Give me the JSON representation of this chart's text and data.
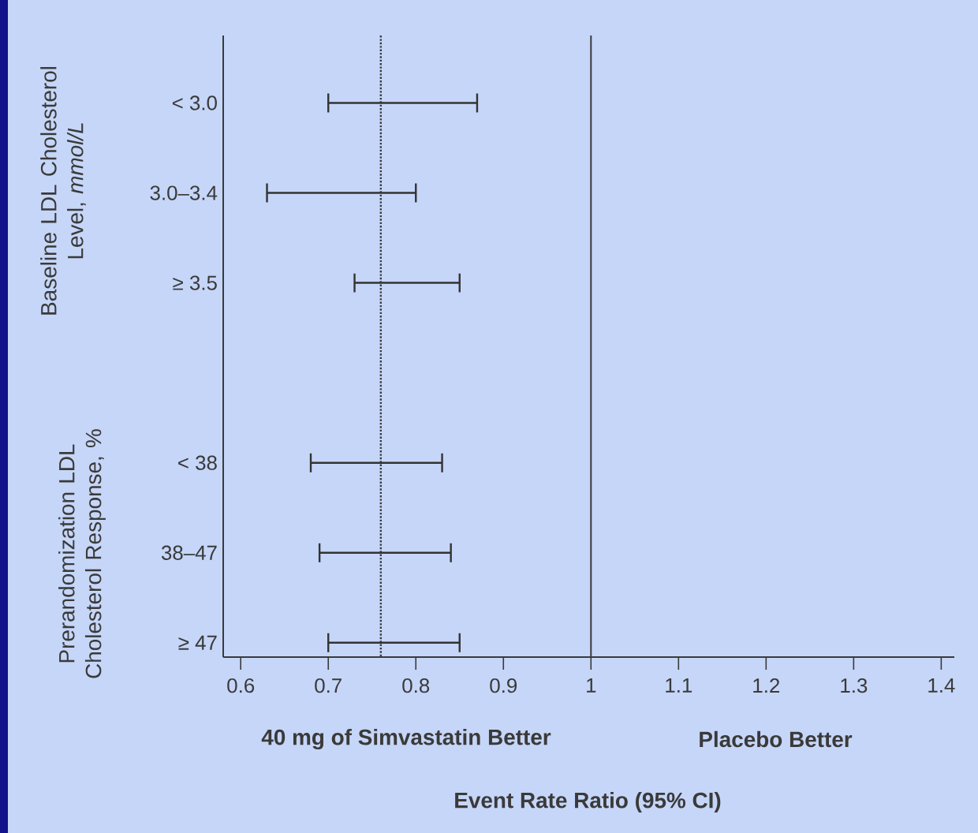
{
  "chart_data": {
    "type": "bar",
    "orientation": "horizontal",
    "categories": [
      "< 3.0",
      "3.0–3.4",
      "≥ 3.5",
      null,
      "< 38",
      "38–47",
      "≥ 47"
    ],
    "base": [
      0.7,
      0.63,
      0.73,
      null,
      0.68,
      0.69,
      0.7
    ],
    "values": [
      0.17,
      0.17,
      0.12,
      null,
      0.15,
      0.15,
      0.15
    ],
    "color": "#333333",
    "grid": false,
    "xlim": [
      0.58,
      1.415
    ],
    "xticks": [
      0.6,
      0.7,
      0.8,
      0.9,
      1,
      1.1,
      1.2,
      1.3,
      1.4
    ],
    "xlabel": "Event Rate Ratio (95% CI)",
    "ref_lines": [
      {
        "axis": "x",
        "value": 0.76,
        "line_style": "dotted"
      },
      {
        "axis": "x",
        "value": 1,
        "line_style": "solid"
      }
    ],
    "annotations": [
      "Baseline LDL Cholesterol Level, *mmol/L*",
      "Prerandomization LDL Cholesterol Response, %",
      "40 mg of Simvastatin Better",
      "Placebo Better"
    ]
  }
}
